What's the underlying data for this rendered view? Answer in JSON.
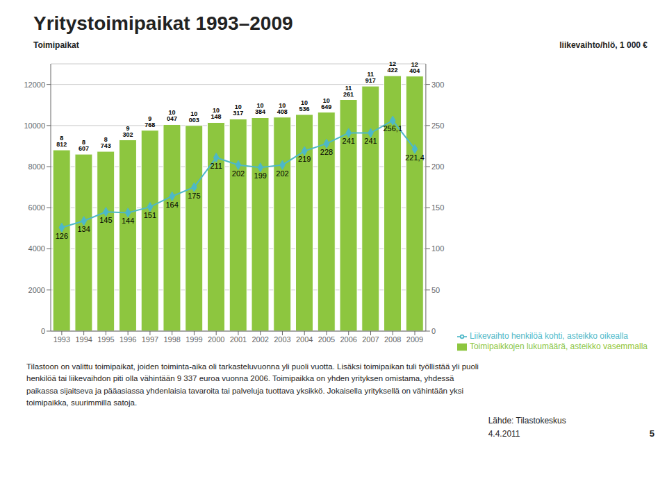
{
  "chart_data": {
    "type": "bar",
    "title": "Yritystoimipaikat 1993–2009",
    "ylabel": "Toimipaikat",
    "y2label": "liikevaihto/hlö, 1 000 €",
    "categories": [
      1993,
      1994,
      1995,
      1996,
      1997,
      1998,
      1999,
      2000,
      2001,
      2002,
      2003,
      2004,
      2005,
      2006,
      2007,
      2008,
      2009
    ],
    "series": [
      {
        "name": "Toimipaikkojen lukumäärä, asteikko vasemmalla",
        "type": "bar",
        "color": "#8dc63f",
        "values": [
          8812,
          8607,
          8743,
          9302,
          9768,
          10047,
          10003,
          10148,
          10317,
          10384,
          10408,
          10536,
          10649,
          11261,
          11917,
          12422,
          12404
        ],
        "value_labels": [
          "8 812",
          "8 607",
          "8 743",
          "9 302",
          "9 768",
          "10 047",
          "10 003",
          "10 148",
          "10 317",
          "10 384",
          "10 408",
          "10 536",
          "10 649",
          "11 261",
          "11 917",
          "12 422",
          "12 404"
        ]
      },
      {
        "name": "Liikevaihto henkilöä kohti, asteikko oikealla",
        "type": "line",
        "axis": "y2",
        "color": "#4db8c8",
        "marker": "diamond",
        "values": [
          126,
          134,
          145,
          144,
          151,
          164,
          175,
          211,
          202,
          199,
          202,
          219,
          228,
          241,
          241,
          256.1,
          221.4
        ],
        "value_labels": [
          "126",
          "134",
          "145",
          "144",
          "151",
          "164",
          "175",
          "211",
          "202",
          "199",
          "202",
          "219",
          "228",
          "241",
          "241",
          "256,1",
          "221,4"
        ]
      }
    ],
    "ylim": [
      0,
      13000
    ],
    "yticks": [
      0,
      2000,
      4000,
      6000,
      8000,
      10000,
      12000
    ],
    "y2lim": [
      0,
      325
    ],
    "y2ticks": [
      0,
      50,
      100,
      150,
      200,
      250,
      300
    ],
    "grid": true,
    "legend": "lower right",
    "data_labels": true,
    "annotations": [
      "Tilastoon on valittu toimipaikat, joiden toiminta-aika oli tarkasteluvuonna yli puoli vuotta. Lisäksi toimipaikan tuli työllistää yli puoli\nhenkilöä tai liikevaihdon piti olla vähintään 9 337 euroa vuonna 2006. Toimipaikka on yhden yrityksen omistama, yhdessä\npaikassa sijaitseva ja pääasiassa yhdenlaisia tavaroita tai palveluja tuottava yksikkö. Jokaisella yrityksellä on vähintään yksi\ntoimipaikka, suurimmilla satoja.",
      "Lähde: Tilastokeskus",
      "4.4.2011",
      "5"
    ]
  }
}
